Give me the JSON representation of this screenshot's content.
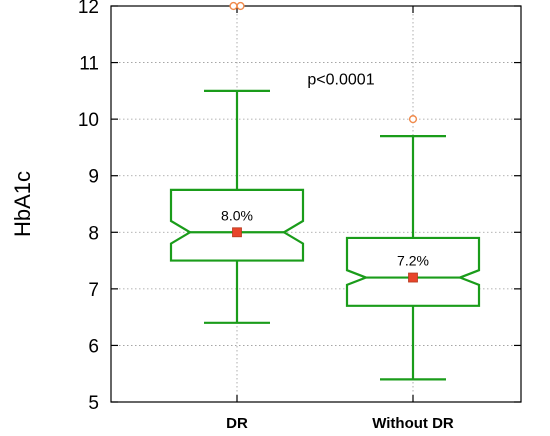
{
  "chart_data": {
    "type": "box",
    "ylabel": "HbA1c",
    "xlabel": "",
    "ylim": [
      5,
      12
    ],
    "yticks": [
      5,
      6,
      7,
      8,
      9,
      10,
      11,
      12
    ],
    "grid": true,
    "notched": true,
    "categories": [
      "DR",
      "Without DR"
    ],
    "boxes": [
      {
        "category": "DR",
        "whisker_low": 6.4,
        "q1": 7.5,
        "median": 8.0,
        "q3": 8.75,
        "whisker_high": 10.5,
        "notch_low": 7.8,
        "notch_high": 8.2,
        "median_label": "8.0%",
        "outliers": [
          12.0,
          12.0
        ]
      },
      {
        "category": "Without DR",
        "whisker_low": 5.4,
        "q1": 6.7,
        "median": 7.2,
        "q3": 7.9,
        "whisker_high": 9.7,
        "notch_low": 7.07,
        "notch_high": 7.33,
        "median_label": "7.2%",
        "outliers": [
          10.0
        ]
      }
    ],
    "annotation": "p<0.0001",
    "colors": {
      "box": "#1a9c1a",
      "median_marker": "#e8452b",
      "outlier": "#f08a4b",
      "grid": "#9a9a9a",
      "frame": "#000000"
    }
  }
}
